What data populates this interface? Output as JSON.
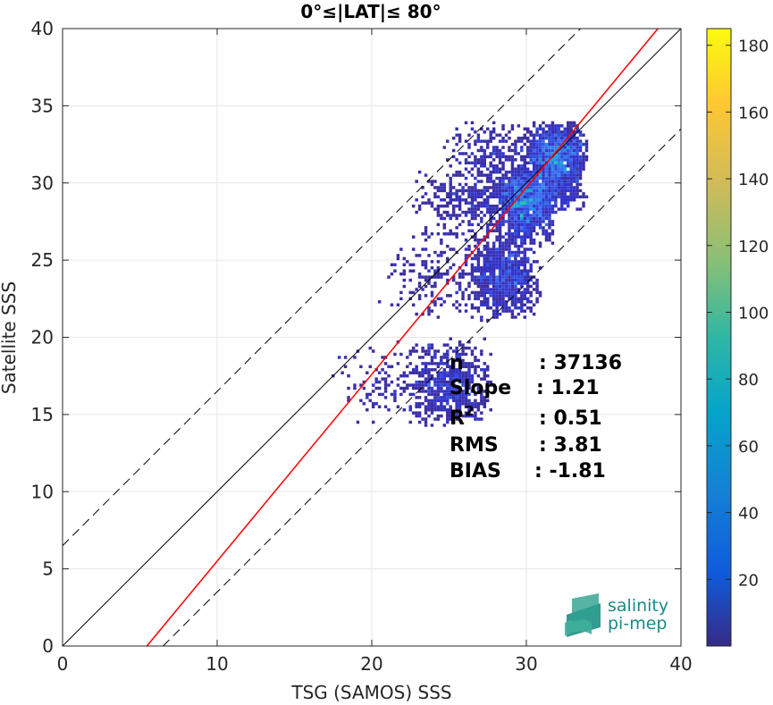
{
  "chart_data": {
    "type": "heatmap",
    "title": "0°≤|LAT|≤ 80°",
    "xlabel": "TSG (SAMOS) SSS",
    "ylabel": "Satellite SSS",
    "xlim": [
      0,
      40
    ],
    "ylim": [
      0,
      40
    ],
    "xticks": [
      0,
      10,
      20,
      30,
      40
    ],
    "yticks": [
      0,
      5,
      10,
      15,
      20,
      25,
      30,
      35,
      40
    ],
    "grid": true,
    "colorbar": {
      "lim": [
        0,
        185
      ],
      "ticks": [
        20,
        40,
        60,
        80,
        100,
        120,
        140,
        160,
        180
      ],
      "colormap": "parula"
    },
    "reference_lines": [
      {
        "name": "identity",
        "style": "solid",
        "color": "#000000",
        "slope": 1,
        "intercept": 0
      },
      {
        "name": "fit",
        "style": "solid",
        "color": "#ff0000",
        "slope": 1.21,
        "intercept": -6.6
      },
      {
        "name": "upper-bound",
        "style": "dashed",
        "color": "#000000",
        "slope": 1,
        "intercept": 6.5
      },
      {
        "name": "lower-bound",
        "style": "dashed",
        "color": "#000000",
        "slope": 1,
        "intercept": -6.5
      }
    ],
    "density_clusters": [
      {
        "x": [
          30,
          32,
          34
        ],
        "y": [
          28,
          32,
          34
        ],
        "weight": 0.35
      },
      {
        "x": [
          28,
          30,
          32
        ],
        "y": [
          26,
          29,
          31
        ],
        "weight": 0.3
      },
      {
        "x": [
          26,
          29,
          31
        ],
        "y": [
          21,
          24,
          27
        ],
        "weight": 0.2
      },
      {
        "x": [
          22,
          25.5,
          28
        ],
        "y": [
          14,
          17,
          20
        ],
        "weight": 0.15
      }
    ],
    "stats": [
      {
        "label": "n",
        "sup": "",
        "value": ": 37136"
      },
      {
        "label": "Slope",
        "sup": "",
        "value": ": 1.21"
      },
      {
        "label": "R",
        "sup": "2",
        "value": ": 0.51"
      },
      {
        "label": "RMS",
        "sup": "",
        "value": ": 3.81"
      },
      {
        "label": "BIAS",
        "sup": "",
        "value": ": -1.81"
      }
    ],
    "n_points": 37136
  },
  "logo": {
    "line1": "salinity",
    "line2": "pi-mep"
  }
}
